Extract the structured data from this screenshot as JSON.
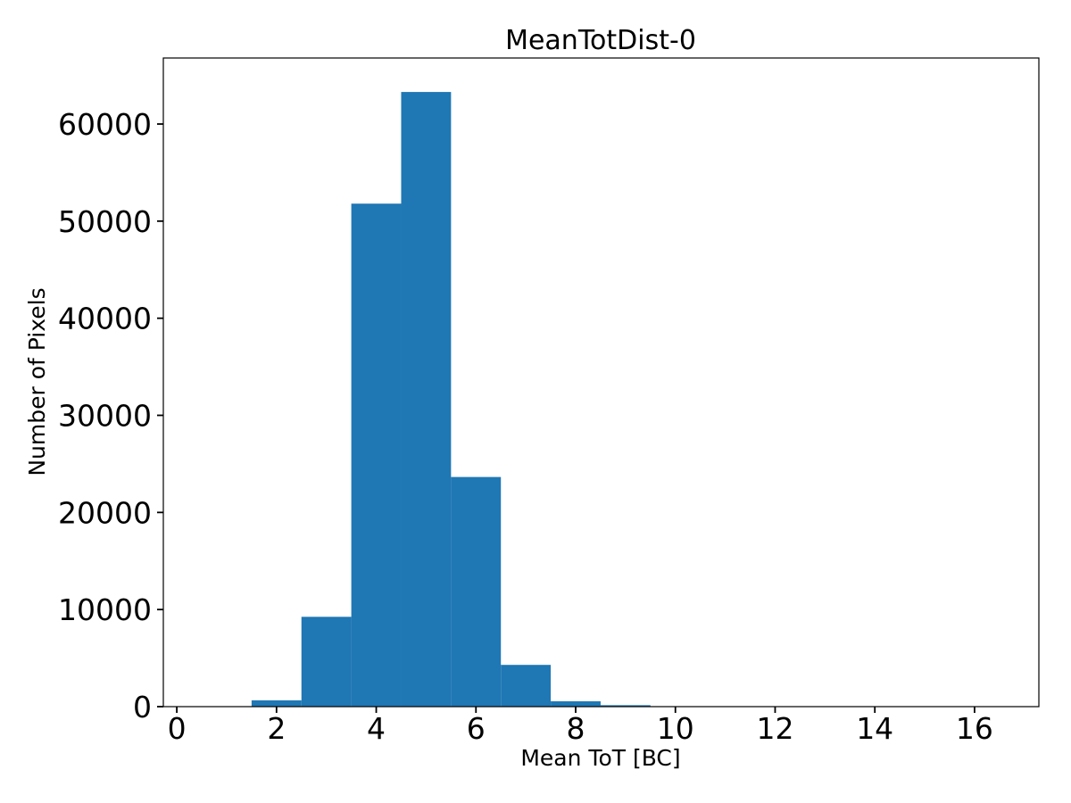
{
  "figure": {
    "background_color": "#ffffff"
  },
  "chart_data": {
    "type": "bar",
    "subtype": "histogram",
    "title": "MeanTotDist-0",
    "xlabel": "Mean ToT [BC]",
    "ylabel": "Number of Pixels",
    "bar_color": "#1f77b4",
    "axis_color": "#000000",
    "bin_edges": [
      1.5,
      2.5,
      3.5,
      4.5,
      5.5,
      6.5,
      7.5,
      8.5,
      9.5
    ],
    "counts": [
      650,
      9250,
      51800,
      63300,
      23650,
      4300,
      550,
      150
    ],
    "xlim": [
      -0.27,
      17.29
    ],
    "ylim": [
      0,
      66800
    ],
    "xticks": [
      0,
      2,
      4,
      6,
      8,
      10,
      12,
      14,
      16
    ],
    "yticks": [
      0,
      10000,
      20000,
      30000,
      40000,
      50000,
      60000
    ],
    "grid": false,
    "legend_position": "none"
  }
}
